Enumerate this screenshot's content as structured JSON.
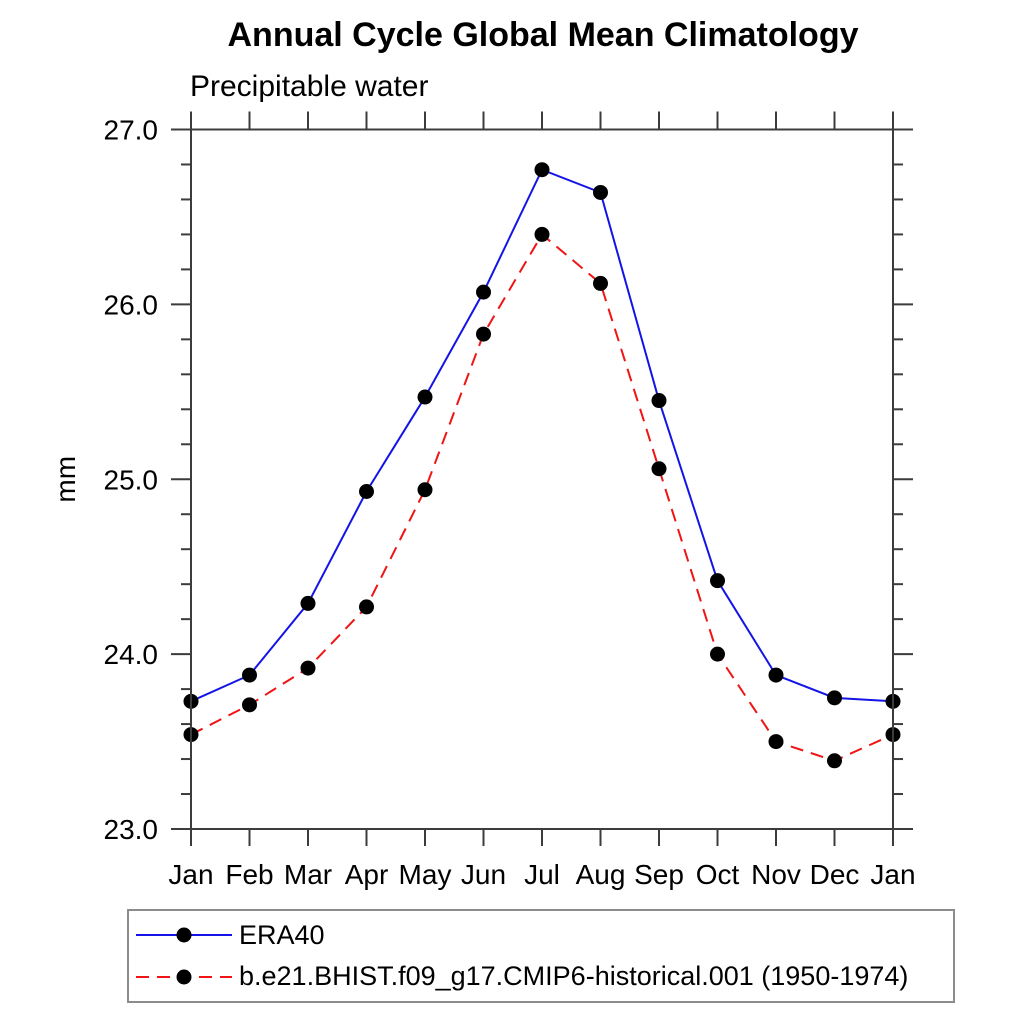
{
  "header": {
    "title": "Annual Cycle Global Mean Climatology",
    "subtitle": "Precipitable water"
  },
  "chart_data": {
    "type": "line",
    "title": "Annual Cycle Global Mean Climatology",
    "subtitle": "Precipitable water",
    "xlabel": "",
    "ylabel": "mm",
    "categories": [
      "Jan",
      "Feb",
      "Mar",
      "Apr",
      "May",
      "Jun",
      "Jul",
      "Aug",
      "Sep",
      "Oct",
      "Nov",
      "Dec",
      "Jan"
    ],
    "series": [
      {
        "name": "ERA40",
        "line_color": "#1414e6",
        "line_style": "solid",
        "marker": "filled-circle",
        "marker_color": "#000000",
        "values": [
          23.73,
          23.88,
          24.29,
          24.93,
          25.47,
          26.07,
          26.77,
          26.64,
          25.45,
          24.42,
          23.88,
          23.75,
          23.73
        ]
      },
      {
        "name": "b.e21.BHIST.f09_g17.CMIP6-historical.001 (1950-1974)",
        "line_color": "#f01414",
        "line_style": "dashed",
        "marker": "filled-circle",
        "marker_color": "#000000",
        "values": [
          23.54,
          23.71,
          23.92,
          24.27,
          24.94,
          25.83,
          26.4,
          26.12,
          25.06,
          24.0,
          23.5,
          23.39,
          23.54
        ]
      }
    ],
    "ylim": [
      23.0,
      27.0
    ],
    "ytick_major_labels": [
      "23.0",
      "24.0",
      "25.0",
      "26.0",
      "27.0"
    ],
    "ytick_major_values": [
      23.0,
      24.0,
      25.0,
      26.0,
      27.0
    ],
    "ytick_minor_step": 0.2,
    "grid": false,
    "legend_position": "bottom-left",
    "axis_color": "#3c3c3c"
  }
}
